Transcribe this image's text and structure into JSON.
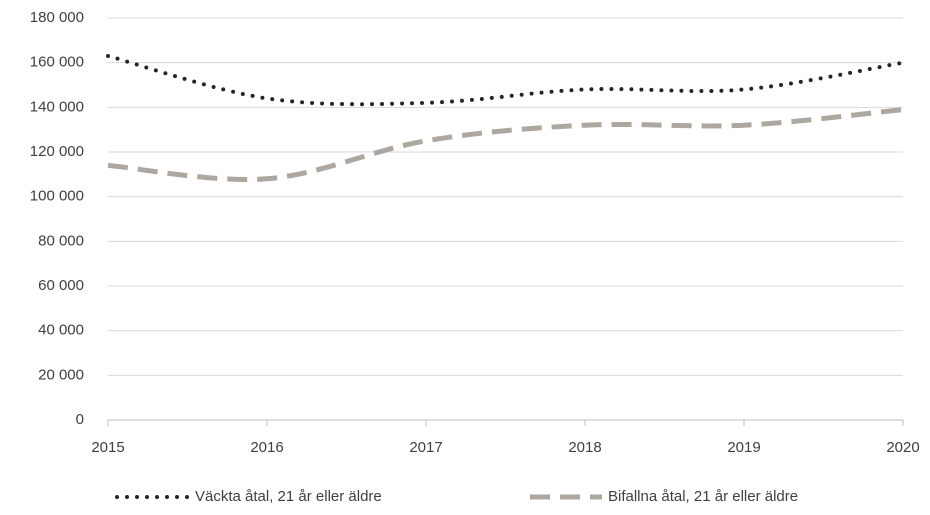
{
  "chart_data": {
    "type": "line",
    "x": [
      2015,
      2016,
      2017,
      2018,
      2019,
      2020
    ],
    "xlim": [
      2015,
      2020
    ],
    "xticks": [
      2015,
      2016,
      2017,
      2018,
      2019,
      2020
    ],
    "ylim": [
      0,
      180000
    ],
    "yticks": [
      0,
      {
        "value": 20000,
        "label": "20 000"
      },
      {
        "value": 40000,
        "label": "40 000"
      },
      {
        "value": 60000,
        "label": "60 000"
      },
      {
        "value": 80000,
        "label": "80 000"
      },
      {
        "value": 100000,
        "label": "100 000"
      },
      {
        "value": 120000,
        "label": "120 000"
      },
      {
        "value": 140000,
        "label": "140 000"
      },
      {
        "value": 160000,
        "label": "160 000"
      },
      {
        "value": 180000,
        "label": "180 000"
      }
    ],
    "grid": true,
    "legend": "bottom",
    "series": [
      {
        "name": "Väckta åtal, 21 år eller äldre",
        "color": "#262626",
        "style": "dotted",
        "values": [
          163000,
          144000,
          142000,
          148000,
          148000,
          160000
        ]
      },
      {
        "name": "Bifallna åtal, 21 år eller äldre",
        "color": "#aea79f",
        "style": "dashed",
        "values": [
          114000,
          108000,
          125000,
          132000,
          132000,
          139000
        ]
      }
    ]
  }
}
